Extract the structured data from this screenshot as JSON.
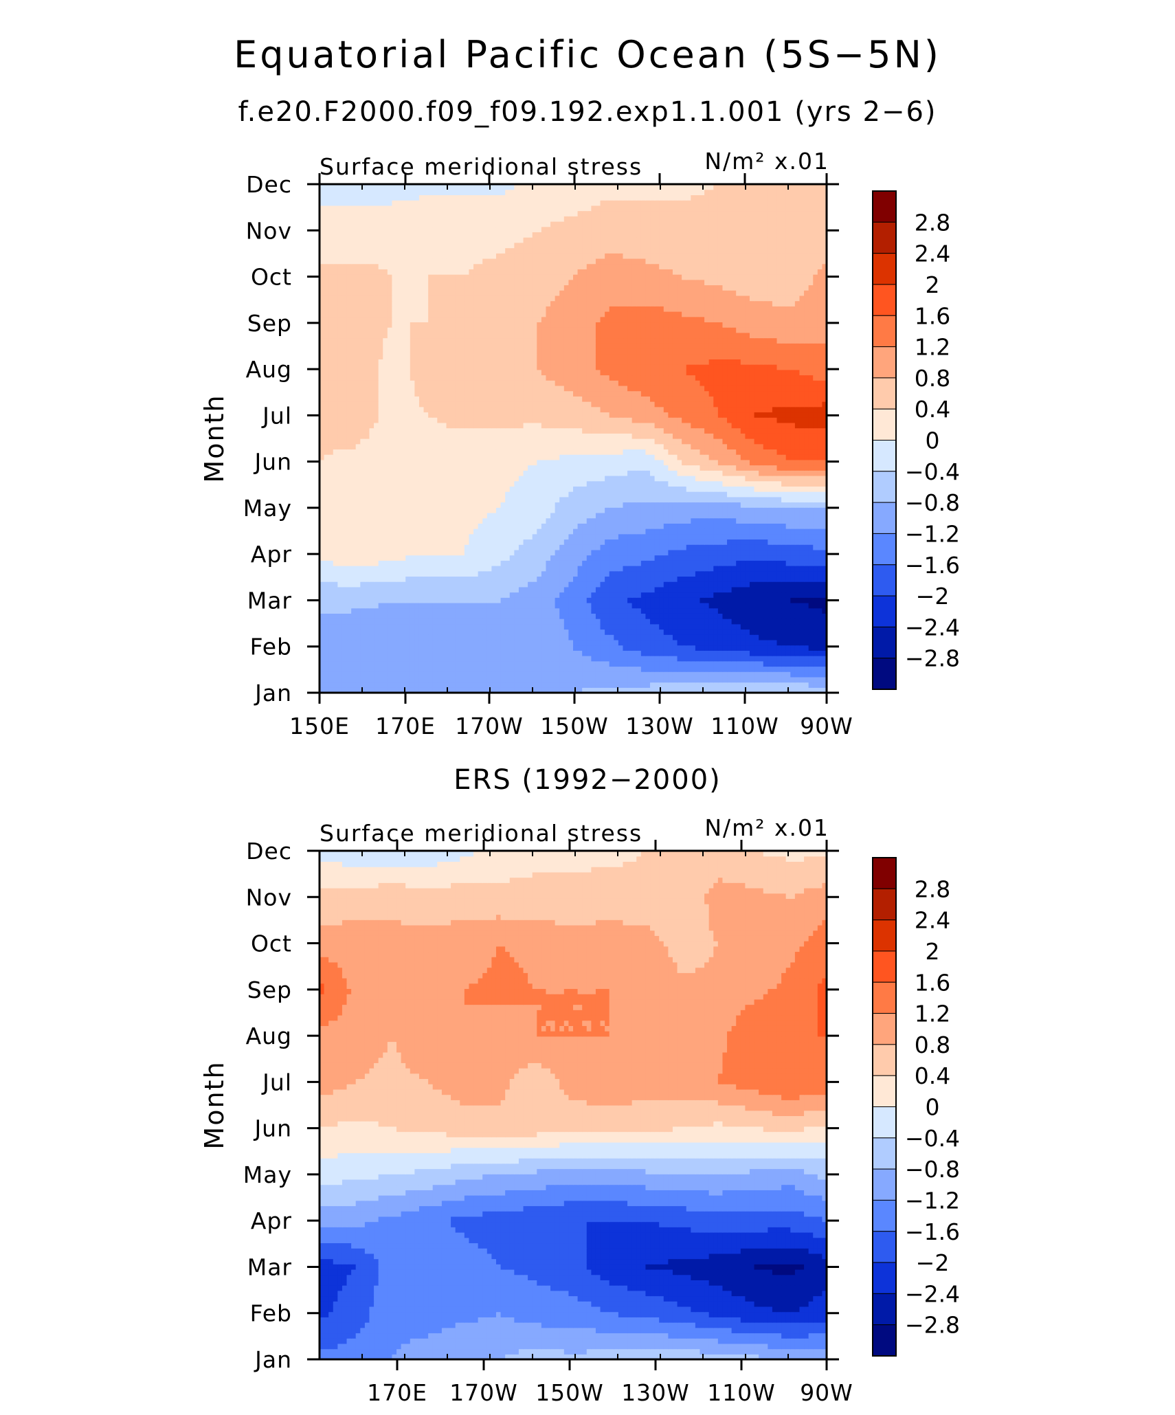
{
  "figure": {
    "title": "Equatorial Pacific Ocean (5S−5N)",
    "colorbar_labels": [
      "2.8",
      "2.4",
      "2",
      "1.6",
      "1.2",
      "0.8",
      "0.4",
      "0",
      "−0.4",
      "−0.8",
      "−1.2",
      "−1.6",
      "−2",
      "−2.4",
      "−2.8"
    ],
    "colors": [
      "#800000",
      "#b31f00",
      "#dc3300",
      "#ff5520",
      "#ff7a45",
      "#ffa57c",
      "#ffcbac",
      "#ffe8d6",
      "#d6e8ff",
      "#b0ccff",
      "#86a9ff",
      "#5a87ff",
      "#2e5bf0",
      "#0d33d9",
      "#001aa8",
      "#000a80"
    ]
  },
  "chart_data": [
    {
      "type": "heatmap",
      "title": "f.e20.F2000.f09_f09.192.exp1.1.001 (yrs 2−6)",
      "left_label": "Surface meridional stress",
      "right_label": "N/m² x.01",
      "ylabel": "Month",
      "xticks": [
        "150E",
        "170E",
        "170W",
        "150W",
        "130W",
        "110W",
        "90W"
      ],
      "yticks": [
        "Jan",
        "Feb",
        "Mar",
        "Apr",
        "May",
        "Jun",
        "Jul",
        "Aug",
        "Sep",
        "Oct",
        "Nov",
        "Dec"
      ],
      "levels": [
        -2.8,
        -2.4,
        -2,
        -1.6,
        -1.2,
        -0.8,
        -0.4,
        0,
        0.4,
        0.8,
        1.2,
        1.6,
        2,
        2.4,
        2.8
      ],
      "grid": [
        [
          -1.2,
          -1.2,
          -1.2,
          -1.1,
          -1.0,
          -0.9,
          -0.8,
          -0.8,
          -0.7,
          -0.6,
          -0.5,
          -0.4,
          -0.35,
          -0.4,
          -0.5
        ],
        [
          -1.0,
          -1.0,
          -0.95,
          -0.9,
          -0.9,
          -0.8,
          -0.8,
          -1.2,
          -1.5,
          -1.8,
          -2.0,
          -2.1,
          -2.3,
          -2.4,
          -2.5
        ],
        [
          -0.7,
          -0.75,
          -0.8,
          -0.8,
          -0.8,
          -0.8,
          -1.0,
          -1.4,
          -1.9,
          -2.1,
          -2.3,
          -2.5,
          -2.7,
          -2.8,
          -2.9
        ],
        [
          0.1,
          0.3,
          0.1,
          0.0,
          0.0,
          -0.3,
          -0.6,
          -1.0,
          -1.4,
          -1.5,
          -1.7,
          -1.8,
          -1.9,
          -1.8,
          -1.7
        ],
        [
          0.2,
          0.1,
          0.1,
          0.1,
          0.1,
          0.0,
          -0.2,
          -0.6,
          -0.8,
          -0.9,
          -1.0,
          -1.0,
          -0.9,
          -0.8,
          -0.8
        ],
        [
          0.4,
          0.3,
          0.2,
          0.2,
          0.2,
          0.1,
          0.0,
          -0.1,
          -0.2,
          -0.3,
          0.4,
          0.8,
          1.3,
          1.6,
          1.6
        ],
        [
          0.5,
          0.6,
          0.3,
          0.4,
          0.5,
          0.5,
          0.5,
          0.6,
          0.8,
          1.0,
          1.3,
          1.6,
          2.0,
          2.1,
          2.2
        ],
        [
          0.5,
          0.6,
          0.3,
          0.5,
          0.6,
          0.7,
          0.8,
          1.0,
          1.3,
          1.5,
          1.6,
          1.7,
          1.7,
          1.6,
          1.4
        ],
        [
          0.6,
          0.5,
          0.4,
          0.4,
          0.45,
          0.6,
          0.8,
          1.0,
          1.3,
          1.4,
          1.3,
          1.2,
          1.0,
          0.9,
          1.0
        ],
        [
          0.5,
          0.5,
          0.4,
          0.4,
          0.4,
          0.5,
          0.6,
          0.8,
          1.0,
          0.9,
          0.8,
          0.7,
          0.6,
          0.6,
          0.9
        ],
        [
          0.2,
          0.2,
          0.3,
          0.3,
          0.3,
          0.3,
          0.4,
          0.5,
          0.6,
          0.6,
          0.6,
          0.6,
          0.6,
          0.7,
          0.6
        ],
        [
          -0.2,
          -0.2,
          -0.2,
          -0.1,
          -0.1,
          -0.1,
          0.1,
          0.2,
          0.3,
          0.3,
          0.3,
          0.4,
          0.5,
          0.5,
          0.4
        ]
      ]
    },
    {
      "type": "heatmap",
      "title": "ERS (1992−2000)",
      "left_label": "Surface meridional stress",
      "right_label": "N/m² x.01",
      "ylabel": "Month",
      "xticks": [
        "170E",
        "170W",
        "150W",
        "130W",
        "110W",
        "90W"
      ],
      "yticks": [
        "Jan",
        "Feb",
        "Mar",
        "Apr",
        "May",
        "Jun",
        "Jul",
        "Aug",
        "Sep",
        "Oct",
        "Nov",
        "Dec"
      ],
      "levels": [
        -2.8,
        -2.4,
        -2,
        -1.6,
        -1.2,
        -0.8,
        -0.4,
        0,
        0.4,
        0.8,
        1.2,
        1.6,
        2,
        2.4,
        2.8
      ],
      "grid": [
        [
          -1.5,
          -1.4,
          -1.2,
          -1.0,
          -0.8,
          -0.8,
          -0.6,
          -0.7,
          -0.6,
          -0.6,
          -0.5,
          -0.6,
          -0.7,
          -0.8,
          -0.9
        ],
        [
          -2.1,
          -1.8,
          -1.3,
          -1.4,
          -1.3,
          -1.2,
          -1.4,
          -1.4,
          -1.6,
          -1.7,
          -1.9,
          -2.1,
          -2.3,
          -2.4,
          -2.2
        ],
        [
          -2.2,
          -2.0,
          -1.4,
          -1.3,
          -1.4,
          -1.6,
          -1.7,
          -1.9,
          -2.2,
          -2.4,
          -2.5,
          -2.6,
          -2.8,
          -2.9,
          -2.6
        ],
        [
          -1.1,
          -1.1,
          -1.3,
          -1.5,
          -1.7,
          -1.8,
          -1.9,
          -2.0,
          -2.0,
          -2.0,
          -1.9,
          -1.8,
          -1.8,
          -1.8,
          -1.6
        ],
        [
          -0.2,
          -0.3,
          -0.4,
          -0.5,
          -0.7,
          -0.8,
          -0.9,
          -1.0,
          -1.0,
          -0.9,
          -0.8,
          -0.8,
          -0.9,
          -1.0,
          -0.7
        ],
        [
          0.4,
          0.3,
          0.4,
          0.5,
          0.6,
          0.7,
          0.6,
          0.5,
          0.5,
          0.5,
          0.4,
          0.3,
          0.4,
          0.5,
          0.3
        ],
        [
          1.0,
          0.8,
          0.7,
          0.8,
          1.0,
          0.9,
          0.5,
          1.0,
          1.1,
          1.0,
          1.0,
          1.2,
          1.4,
          1.6,
          1.5
        ],
        [
          1.1,
          1.0,
          0.8,
          1.1,
          1.2,
          1.0,
          1.2,
          1.2,
          1.2,
          1.1,
          1.0,
          1.1,
          1.5,
          1.6,
          1.6
        ],
        [
          1.7,
          1.1,
          0.8,
          1.0,
          1.2,
          1.3,
          1.2,
          1.2,
          1.2,
          1.2,
          0.9,
          0.9,
          1.1,
          1.3,
          1.7
        ],
        [
          1.0,
          1.0,
          0.9,
          0.9,
          1.0,
          1.2,
          1.1,
          1.0,
          1.0,
          1.0,
          0.6,
          0.8,
          0.9,
          1.1,
          1.4
        ],
        [
          0.5,
          0.6,
          0.7,
          0.6,
          0.6,
          0.5,
          0.5,
          0.5,
          0.6,
          0.5,
          0.4,
          1.0,
          0.9,
          0.8,
          1.0
        ],
        [
          -0.1,
          -0.3,
          -0.4,
          -0.3,
          -0.1,
          0.2,
          0.3,
          0.3,
          0.3,
          0.4,
          0.5,
          0.5,
          0.4,
          0.3,
          0.3
        ]
      ]
    }
  ]
}
